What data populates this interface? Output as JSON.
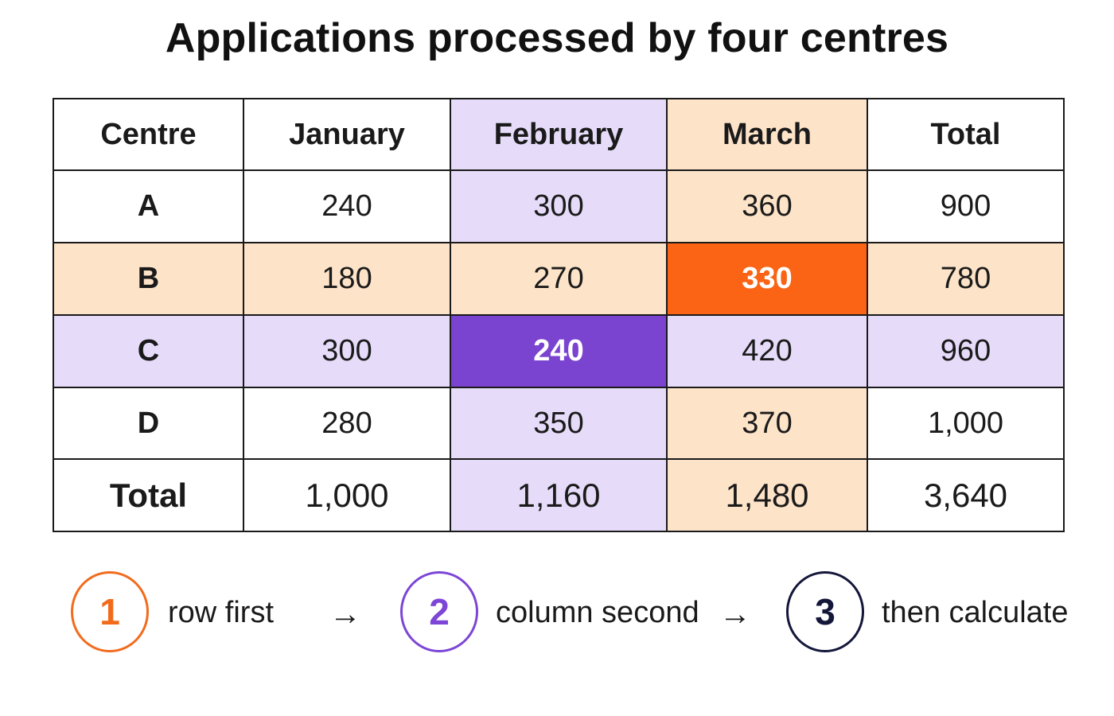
{
  "title": "Applications processed by four centres",
  "colors": {
    "lavender": "#e6dcfa",
    "peach": "#fde3c8",
    "purple_highlight": "#7a44d0",
    "orange_highlight": "#fa6414",
    "step1": "#f26b1d",
    "step2": "#7c46d6",
    "step3": "#14163a"
  },
  "chart_data": {
    "type": "table",
    "title": "Applications processed by four centres",
    "columns": [
      "Centre",
      "January",
      "February",
      "March",
      "Total"
    ],
    "rows": [
      {
        "label": "A",
        "values": [
          "240",
          "300",
          "360",
          "900"
        ]
      },
      {
        "label": "B",
        "values": [
          "180",
          "270",
          "330",
          "780"
        ]
      },
      {
        "label": "C",
        "values": [
          "300",
          "240",
          "420",
          "960"
        ]
      },
      {
        "label": "D",
        "values": [
          "280",
          "350",
          "370",
          "1,000"
        ]
      },
      {
        "label": "Total",
        "values": [
          "1,000",
          "1,160",
          "1,480",
          "3,640"
        ]
      }
    ],
    "highlighted_row": "B",
    "highlighted_column": "February",
    "highlighted_cells": [
      {
        "row": "B",
        "column": "March",
        "value": "330",
        "color": "#fa6414"
      },
      {
        "row": "C",
        "column": "February",
        "value": "240",
        "color": "#7a44d0"
      }
    ]
  },
  "steps": [
    {
      "number": "1",
      "text": "row first",
      "color": "#f26b1d"
    },
    {
      "number": "2",
      "text": "column second",
      "color": "#7c46d6"
    },
    {
      "number": "3",
      "text": "then calculate",
      "color": "#14163a"
    }
  ],
  "arrow_glyph": "→"
}
